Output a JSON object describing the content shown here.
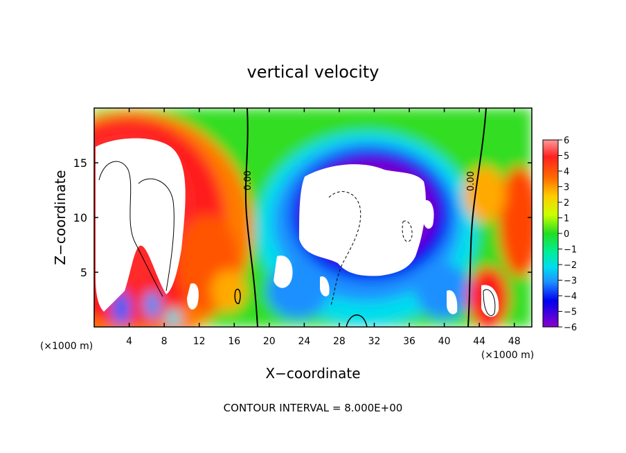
{
  "chart_data": {
    "type": "heatmap",
    "title": "vertical velocity",
    "xlabel": "X−coordinate",
    "ylabel": "Z−coordinate",
    "x_unit_label": "(×1000 m)",
    "y_unit_label": "(×1000 m)",
    "footer": "CONTOUR INTERVAL = 8.000E+00",
    "xlim": [
      0,
      50
    ],
    "ylim": [
      0,
      20
    ],
    "x_ticks": [
      "4",
      "8",
      "12",
      "16",
      "20",
      "24",
      "28",
      "32",
      "36",
      "40",
      "44",
      "48"
    ],
    "y_ticks": [
      "5",
      "10",
      "15"
    ],
    "colorbar_ticks": [
      "6",
      "5",
      "4",
      "3",
      "2",
      "1",
      "0",
      "−1",
      "−2",
      "−3",
      "−4",
      "−5",
      "−6"
    ],
    "colorbar_range": [
      -6,
      6
    ],
    "contour_labels": [
      "0.00",
      "0.00"
    ],
    "colors": {
      "pos_high": "#ff8e8e",
      "pos": "#ff0000",
      "mid_pos": "#ffa500",
      "low_pos": "#ffff00",
      "zero": "#22dd22",
      "low_neg": "#00eedd",
      "neg": "#1e90ff",
      "mid_neg": "#0000dd",
      "neg_high": "#8b00cc"
    }
  }
}
